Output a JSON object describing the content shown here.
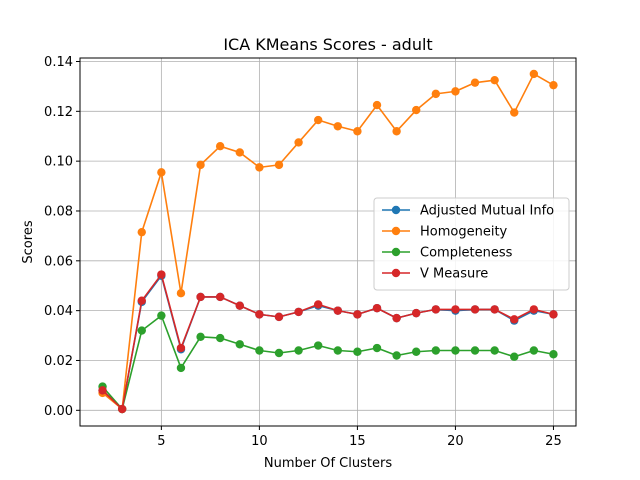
{
  "chart_data": {
    "type": "line",
    "title": "ICA KMeans Scores - adult",
    "xlabel": "Number Of Clusters",
    "ylabel": "Scores",
    "xlim": [
      0.85,
      26.15
    ],
    "ylim": [
      -0.0063,
      0.1414
    ],
    "xticks": [
      5,
      10,
      15,
      20,
      25
    ],
    "xtick_labels": [
      "5",
      "10",
      "15",
      "20",
      "25"
    ],
    "yticks": [
      0.0,
      0.02,
      0.04,
      0.06,
      0.08,
      0.1,
      0.12,
      0.14
    ],
    "ytick_labels": [
      "0.00",
      "0.02",
      "0.04",
      "0.06",
      "0.08",
      "0.10",
      "0.12",
      "0.14"
    ],
    "grid": true,
    "legend_position": "center-right",
    "x": [
      2,
      3,
      4,
      5,
      6,
      7,
      8,
      9,
      10,
      11,
      12,
      13,
      14,
      15,
      16,
      17,
      18,
      19,
      20,
      21,
      22,
      23,
      24,
      25
    ],
    "series": [
      {
        "name": "Adjusted Mutual Info",
        "color": "#1f77b4",
        "values": [
          0.008,
          0.0005,
          0.0435,
          0.054,
          0.0245,
          0.0455,
          0.0455,
          0.042,
          0.0385,
          0.0375,
          0.0395,
          0.042,
          0.04,
          0.0385,
          0.041,
          0.037,
          0.039,
          0.0405,
          0.04,
          0.0405,
          0.0405,
          0.036,
          0.04,
          0.0385
        ]
      },
      {
        "name": "Homogeneity",
        "color": "#ff7f0e",
        "values": [
          0.007,
          0.0005,
          0.0715,
          0.0955,
          0.047,
          0.0985,
          0.106,
          0.1035,
          0.0975,
          0.0985,
          0.1075,
          0.1165,
          0.114,
          0.112,
          0.1225,
          0.112,
          0.1205,
          0.127,
          0.128,
          0.1315,
          0.1325,
          0.1195,
          0.135,
          0.1305
        ]
      },
      {
        "name": "Completeness",
        "color": "#2ca02c",
        "values": [
          0.0095,
          0.0005,
          0.032,
          0.038,
          0.017,
          0.0295,
          0.029,
          0.0265,
          0.024,
          0.023,
          0.024,
          0.026,
          0.024,
          0.0235,
          0.025,
          0.022,
          0.0235,
          0.024,
          0.024,
          0.024,
          0.024,
          0.0215,
          0.024,
          0.0225
        ]
      },
      {
        "name": "V Measure",
        "color": "#d62728",
        "values": [
          0.008,
          0.0005,
          0.044,
          0.0545,
          0.025,
          0.0455,
          0.0455,
          0.042,
          0.0385,
          0.0375,
          0.0395,
          0.0425,
          0.04,
          0.0385,
          0.041,
          0.037,
          0.039,
          0.0405,
          0.0405,
          0.0405,
          0.0405,
          0.0365,
          0.0405,
          0.0385
        ]
      }
    ]
  }
}
